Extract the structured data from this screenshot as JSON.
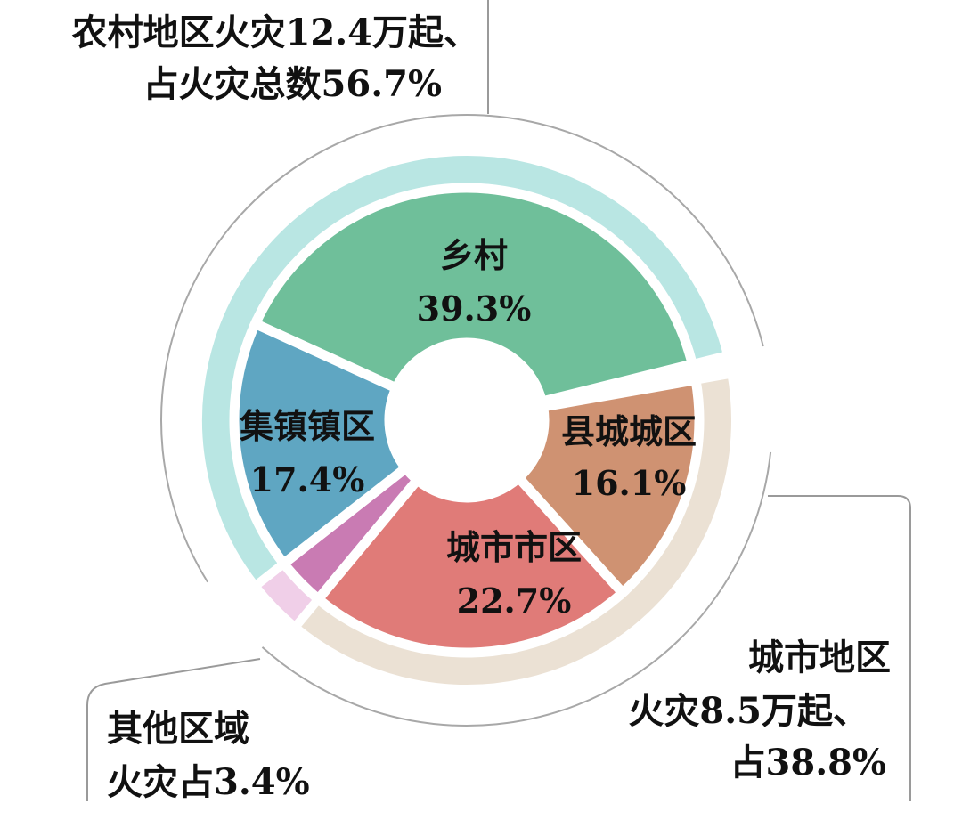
{
  "chart_data": {
    "type": "pie",
    "outer_ring": [
      {
        "name": "农村地区",
        "value": 56.7,
        "color": "#b9e6e3"
      },
      {
        "name": "城市地区",
        "value": 38.8,
        "color": "#ebe1d4"
      },
      {
        "name": "其他区域",
        "value": 3.4,
        "color": "#f0cfe8"
      }
    ],
    "inner_ring": [
      {
        "label": "乡村",
        "pct": "39.3%",
        "value": 39.3,
        "color": "#6fbf9a"
      },
      {
        "label": "集镇镇区",
        "pct": "17.4%",
        "value": 17.4,
        "color": "#5fa6c2"
      },
      {
        "label": "县城城区",
        "pct": "16.1%",
        "value": 16.1,
        "color": "#cf9272"
      },
      {
        "label": "城市市区",
        "pct": "22.7%",
        "value": 22.7,
        "color": "#e07b78"
      },
      {
        "label": "",
        "pct": "",
        "value": 3.4,
        "color": "#c97bb3"
      }
    ],
    "annotations": {
      "rural": [
        "农村地区火灾12.4万起、",
        "占火灾总数56.7%"
      ],
      "urban": [
        "城市地区",
        "火灾8.5万起、",
        "占38.8%"
      ],
      "other": [
        "其他区域",
        "火灾占3.4%"
      ]
    }
  }
}
